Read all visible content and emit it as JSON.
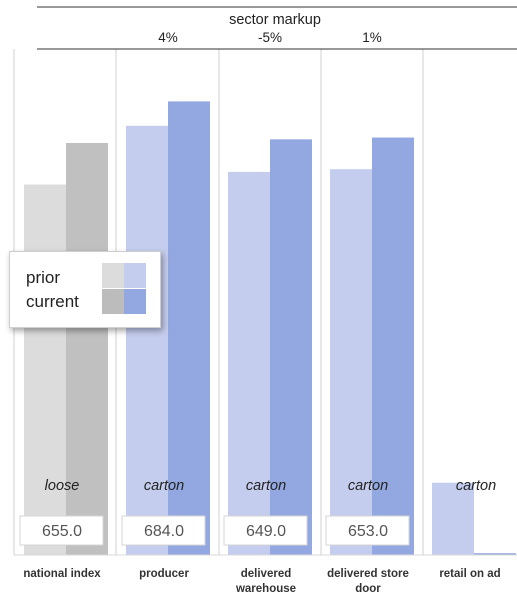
{
  "chart_data": {
    "type": "bar",
    "title": "sector markup",
    "categories": [
      "national index",
      "producer",
      "delivered warehouse",
      "delivered store door",
      "retail on ad"
    ],
    "category_lines": [
      [
        "national index"
      ],
      [
        "producer"
      ],
      [
        "delivered",
        "warehouse"
      ],
      [
        "delivered store",
        "door"
      ],
      [
        "retail on ad"
      ]
    ],
    "series": [
      {
        "name": "prior",
        "values": [
          410,
          475,
          424,
          427,
          80
        ]
      },
      {
        "name": "current",
        "values": [
          456,
          502,
          460,
          462,
          2
        ]
      }
    ],
    "ylim": [
      0,
      560
    ],
    "markup_labels": [
      "",
      "4%",
      "-5%",
      "1%",
      ""
    ],
    "packaging_labels": [
      "loose",
      "carton",
      "carton",
      "carton",
      "carton"
    ],
    "price_labels": [
      "655.0",
      "684.0",
      "649.0",
      "653.0",
      ""
    ],
    "legend": {
      "entries": [
        "prior",
        "current"
      ],
      "position": "middle-left"
    },
    "colors": {
      "prior": [
        "#dcdcdc",
        "#c5cdee",
        "#c5cdee",
        "#c5cdee",
        "#c5cdee"
      ],
      "current": [
        "#c0c0c0",
        "#93a7e0",
        "#93a7e0",
        "#93a7e0",
        "#93a7e0"
      ],
      "legend_prior": [
        "#dcdcdc",
        "#c5cdee"
      ],
      "legend_current": [
        "#bcbcbc",
        "#93a7e0"
      ],
      "divider": "#d0d0d0"
    }
  }
}
